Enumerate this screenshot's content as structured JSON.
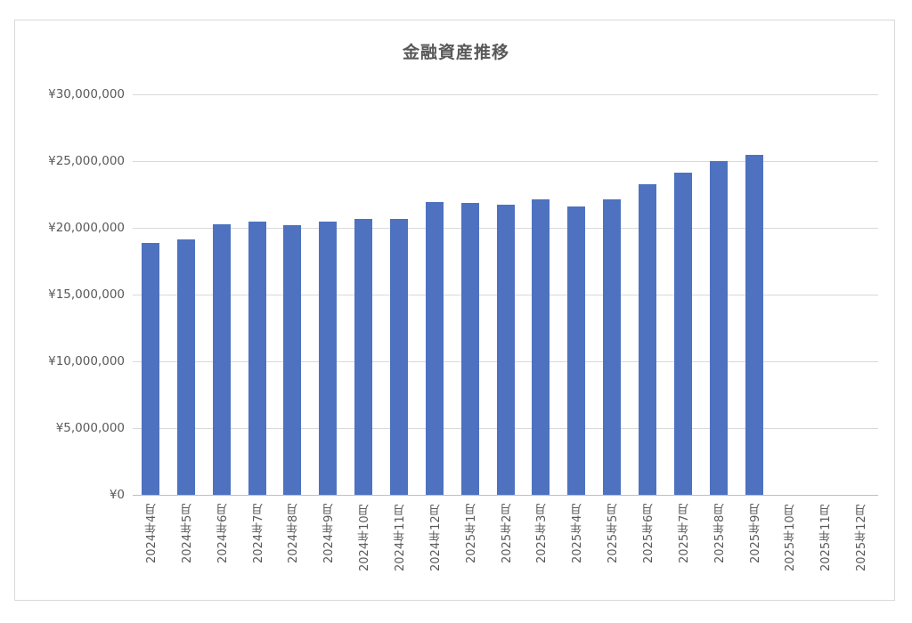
{
  "chart_data": {
    "type": "bar",
    "title": "金融資産推移",
    "xlabel": "",
    "ylabel": "",
    "ylim": [
      0,
      30000000
    ],
    "yticks": [
      0,
      5000000,
      10000000,
      15000000,
      20000000,
      25000000,
      30000000
    ],
    "ytick_labels": [
      "¥0",
      "¥5,000,000",
      "¥10,000,000",
      "¥15,000,000",
      "¥20,000,000",
      "¥25,000,000",
      "¥30,000,000"
    ],
    "grid": true,
    "legend": null,
    "bar_color": "#4e72c0",
    "categories": [
      "2024年4月",
      "2024年5月",
      "2024年6月",
      "2024年7月",
      "2024年8月",
      "2024年9月",
      "2024年10月",
      "2024年11月",
      "2024年12月",
      "2025年1月",
      "2025年2月",
      "2025年3月",
      "2025年4月",
      "2025年5月",
      "2025年6月",
      "2025年7月",
      "2025年8月",
      "2025年9月",
      "2025年10月",
      "2025年11月",
      "2025年12月"
    ],
    "values": [
      18870000,
      19130000,
      20270000,
      20450000,
      20180000,
      20470000,
      20650000,
      20650000,
      21950000,
      21870000,
      21710000,
      22130000,
      21600000,
      22130000,
      23250000,
      24130000,
      25020000,
      25450000,
      null,
      null,
      null
    ]
  },
  "title": "金融資産推移",
  "y_axis": {
    "labels": [
      "¥30,000,000",
      "¥25,000,000",
      "¥20,000,000",
      "¥15,000,000",
      "¥10,000,000",
      "¥5,000,000",
      "¥0"
    ]
  },
  "x_axis": {
    "labels": [
      "2024年4月",
      "2024年5月",
      "2024年6月",
      "2024年7月",
      "2024年8月",
      "2024年9月",
      "2024年10月",
      "2024年11月",
      "2024年12月",
      "2025年1月",
      "2025年2月",
      "2025年3月",
      "2025年4月",
      "2025年5月",
      "2025年6月",
      "2025年7月",
      "2025年8月",
      "2025年9月",
      "2025年10月",
      "2025年11月",
      "2025年12月"
    ]
  }
}
